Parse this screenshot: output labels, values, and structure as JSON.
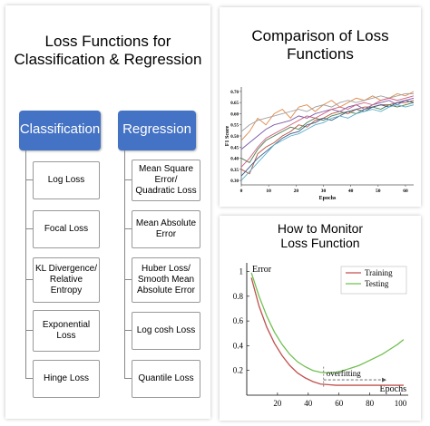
{
  "left": {
    "title_lines": [
      "Loss Functions for",
      "Classification & Regression"
    ],
    "classification": {
      "heading": "Classification",
      "items": [
        [
          "Log Loss"
        ],
        [
          "Focal Loss"
        ],
        [
          "KL Divergence/",
          "Relative",
          "Entropy"
        ],
        [
          "Exponential",
          "Loss"
        ],
        [
          "Hinge Loss"
        ]
      ]
    },
    "regression": {
      "heading": "Regression",
      "items": [
        [
          "Mean Square",
          "Error/",
          "Quadratic Loss"
        ],
        [
          "Mean Absolute",
          "Error"
        ],
        [
          "Huber Loss/",
          "Smooth Mean",
          "Absolute Error"
        ],
        [
          "Log cosh Loss"
        ],
        [
          "Quantile Loss"
        ]
      ]
    }
  },
  "top_right": {
    "title_lines": [
      "Comparison of Loss",
      "Functions"
    ],
    "chart_data": {
      "type": "line",
      "xlabel": "Epochs",
      "ylabel": "F1 Score",
      "x_ticks": [
        "0",
        "10",
        "20",
        "30",
        "40",
        "50",
        "60"
      ],
      "y_ticks": [
        "0.30",
        "0.35",
        "0.40",
        "0.45",
        "0.50",
        "0.55",
        "0.60",
        "0.65",
        "0.70"
      ],
      "xlim": [
        0,
        63
      ],
      "ylim": [
        0.28,
        0.72
      ],
      "colors": [
        "#b5533c",
        "#e08a4a",
        "#4a7a4a",
        "#3a5a8a",
        "#7a5aa8",
        "#5ab0c8",
        "#a0a0a0",
        "#d06080"
      ],
      "series_x": [
        0,
        3,
        6,
        9,
        12,
        15,
        18,
        21,
        24,
        27,
        30,
        33,
        36,
        39,
        42,
        45,
        48,
        51,
        54,
        57,
        60,
        63
      ],
      "series": [
        {
          "values": [
            0.35,
            0.33,
            0.42,
            0.45,
            0.47,
            0.5,
            0.52,
            0.55,
            0.54,
            0.57,
            0.58,
            0.6,
            0.61,
            0.6,
            0.62,
            0.63,
            0.63,
            0.64,
            0.64,
            0.65,
            0.65,
            0.66
          ]
        },
        {
          "values": [
            0.48,
            0.52,
            0.58,
            0.55,
            0.6,
            0.62,
            0.58,
            0.63,
            0.64,
            0.61,
            0.64,
            0.66,
            0.63,
            0.65,
            0.67,
            0.66,
            0.68,
            0.66,
            0.67,
            0.69,
            0.68,
            0.7
          ]
        },
        {
          "values": [
            0.4,
            0.38,
            0.44,
            0.48,
            0.5,
            0.52,
            0.54,
            0.53,
            0.56,
            0.58,
            0.57,
            0.59,
            0.6,
            0.61,
            0.6,
            0.62,
            0.63,
            0.62,
            0.64,
            0.63,
            0.64,
            0.65
          ]
        },
        {
          "values": [
            0.32,
            0.36,
            0.4,
            0.43,
            0.46,
            0.49,
            0.51,
            0.52,
            0.55,
            0.56,
            0.58,
            0.57,
            0.59,
            0.61,
            0.62,
            0.61,
            0.63,
            0.64,
            0.63,
            0.65,
            0.66,
            0.65
          ]
        },
        {
          "values": [
            0.44,
            0.47,
            0.5,
            0.53,
            0.55,
            0.56,
            0.57,
            0.59,
            0.58,
            0.6,
            0.61,
            0.62,
            0.61,
            0.63,
            0.64,
            0.62,
            0.64,
            0.65,
            0.66,
            0.64,
            0.66,
            0.67
          ]
        },
        {
          "values": [
            0.3,
            0.34,
            0.38,
            0.42,
            0.46,
            0.48,
            0.5,
            0.51,
            0.53,
            0.55,
            0.56,
            0.58,
            0.59,
            0.58,
            0.6,
            0.61,
            0.62,
            0.61,
            0.63,
            0.64,
            0.63,
            0.64
          ]
        },
        {
          "values": [
            0.52,
            0.55,
            0.57,
            0.58,
            0.59,
            0.6,
            0.61,
            0.62,
            0.61,
            0.63,
            0.64,
            0.63,
            0.65,
            0.66,
            0.65,
            0.66,
            0.67,
            0.68,
            0.67,
            0.68,
            0.69,
            0.69
          ]
        },
        {
          "values": [
            0.36,
            0.4,
            0.45,
            0.49,
            0.51,
            0.53,
            0.55,
            0.57,
            0.59,
            0.58,
            0.6,
            0.62,
            0.63,
            0.62,
            0.64,
            0.65,
            0.64,
            0.66,
            0.67,
            0.66,
            0.67,
            0.68
          ]
        }
      ]
    }
  },
  "bottom_right": {
    "title_lines": [
      "How to Monitor",
      "Loss Function"
    ],
    "chart_data": {
      "type": "line",
      "ylabel": "Error",
      "xlabel": "Epochs",
      "x_ticks": [
        "20",
        "40",
        "60",
        "80",
        "100"
      ],
      "y_ticks": [
        "0.2",
        "0.4",
        "0.6",
        "0.8",
        "1"
      ],
      "xlim": [
        0,
        105
      ],
      "ylim": [
        0,
        1.07
      ],
      "annotation": "overfitting",
      "series": [
        {
          "name": "Training",
          "color": "#c0504d",
          "x": [
            3,
            8,
            13,
            18,
            23,
            28,
            33,
            38,
            43,
            48,
            53,
            58,
            63,
            68,
            73,
            78,
            83,
            88,
            93,
            98,
            102
          ],
          "values": [
            0.95,
            0.72,
            0.55,
            0.42,
            0.32,
            0.24,
            0.18,
            0.14,
            0.11,
            0.09,
            0.085,
            0.08,
            0.08,
            0.08,
            0.08,
            0.08,
            0.08,
            0.08,
            0.08,
            0.08,
            0.08
          ]
        },
        {
          "name": "Testing",
          "color": "#70c050",
          "x": [
            3,
            8,
            13,
            18,
            23,
            28,
            33,
            38,
            43,
            48,
            53,
            58,
            63,
            68,
            73,
            78,
            83,
            88,
            93,
            98,
            102
          ],
          "values": [
            0.99,
            0.8,
            0.64,
            0.51,
            0.41,
            0.33,
            0.27,
            0.23,
            0.2,
            0.185,
            0.18,
            0.185,
            0.2,
            0.22,
            0.24,
            0.27,
            0.3,
            0.33,
            0.37,
            0.41,
            0.45
          ]
        }
      ]
    }
  }
}
